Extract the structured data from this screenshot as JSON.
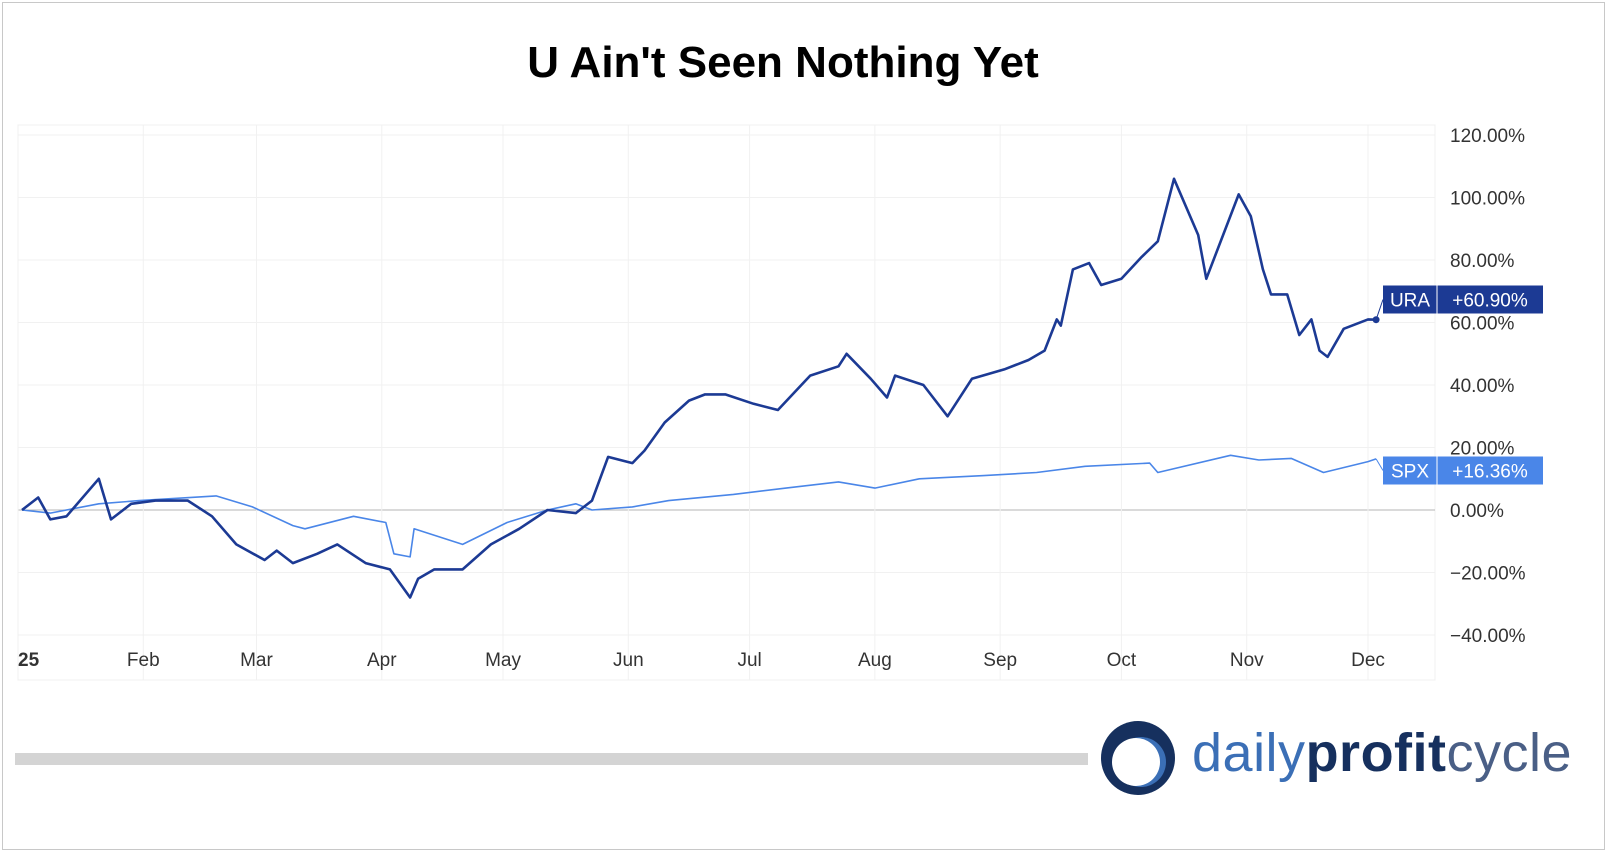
{
  "title": "U Ain't Seen Nothing Yet",
  "chart_data": {
    "type": "line",
    "title": "U Ain't Seen Nothing Yet",
    "xlabel": "",
    "ylabel": "",
    "x_tick_labels": [
      "25",
      "Feb",
      "Mar",
      "Apr",
      "May",
      "Jun",
      "Jul",
      "Aug",
      "Sep",
      "Oct",
      "Nov",
      "Dec"
    ],
    "y_tick_labels": [
      "120.00%",
      "100.00%",
      "80.00%",
      "60.00%",
      "40.00%",
      "20.00%",
      "0.00%",
      "−20.00%",
      "−40.00%"
    ],
    "ylim": [
      -40,
      120
    ],
    "grid": true,
    "series": [
      {
        "name": "URA",
        "color": "#1c3a94",
        "last_label": "+60.90%",
        "points": [
          [
            "2025-01-02",
            0
          ],
          [
            "2025-01-06",
            4
          ],
          [
            "2025-01-09",
            -3
          ],
          [
            "2025-01-13",
            -2
          ],
          [
            "2025-01-21",
            10
          ],
          [
            "2025-01-24",
            -3
          ],
          [
            "2025-01-29",
            2
          ],
          [
            "2025-02-04",
            3
          ],
          [
            "2025-02-12",
            3
          ],
          [
            "2025-02-18",
            -2
          ],
          [
            "2025-02-24",
            -11
          ],
          [
            "2025-03-03",
            -16
          ],
          [
            "2025-03-06",
            -13
          ],
          [
            "2025-03-10",
            -17
          ],
          [
            "2025-03-16",
            -14
          ],
          [
            "2025-03-21",
            -11
          ],
          [
            "2025-03-28",
            -17
          ],
          [
            "2025-04-03",
            -19
          ],
          [
            "2025-04-08",
            -28
          ],
          [
            "2025-04-10",
            -22
          ],
          [
            "2025-04-14",
            -19
          ],
          [
            "2025-04-21",
            -19
          ],
          [
            "2025-04-28",
            -11
          ],
          [
            "2025-05-05",
            -6
          ],
          [
            "2025-05-12",
            0
          ],
          [
            "2025-05-19",
            -1
          ],
          [
            "2025-05-23",
            3
          ],
          [
            "2025-05-27",
            17
          ],
          [
            "2025-06-02",
            15
          ],
          [
            "2025-06-05",
            19
          ],
          [
            "2025-06-10",
            28
          ],
          [
            "2025-06-16",
            35
          ],
          [
            "2025-06-20",
            37
          ],
          [
            "2025-06-25",
            37
          ],
          [
            "2025-07-02",
            34
          ],
          [
            "2025-07-08",
            32
          ],
          [
            "2025-07-16",
            43
          ],
          [
            "2025-07-23",
            46
          ],
          [
            "2025-07-25",
            50
          ],
          [
            "2025-07-31",
            42
          ],
          [
            "2025-08-04",
            36
          ],
          [
            "2025-08-06",
            43
          ],
          [
            "2025-08-13",
            40
          ],
          [
            "2025-08-19",
            30
          ],
          [
            "2025-08-25",
            42
          ],
          [
            "2025-09-02",
            45
          ],
          [
            "2025-09-08",
            48
          ],
          [
            "2025-09-12",
            51
          ],
          [
            "2025-09-15",
            61
          ],
          [
            "2025-09-16",
            59
          ],
          [
            "2025-09-19",
            77
          ],
          [
            "2025-09-23",
            79
          ],
          [
            "2025-09-26",
            72
          ],
          [
            "2025-10-01",
            74
          ],
          [
            "2025-10-06",
            81
          ],
          [
            "2025-10-10",
            86
          ],
          [
            "2025-10-14",
            106
          ],
          [
            "2025-10-20",
            88
          ],
          [
            "2025-10-22",
            74
          ],
          [
            "2025-10-30",
            101
          ],
          [
            "2025-11-02",
            94
          ],
          [
            "2025-11-05",
            77
          ],
          [
            "2025-11-07",
            69
          ],
          [
            "2025-11-11",
            69
          ],
          [
            "2025-11-14",
            56
          ],
          [
            "2025-11-17",
            61
          ],
          [
            "2025-11-19",
            51
          ],
          [
            "2025-11-21",
            49
          ],
          [
            "2025-11-25",
            58
          ],
          [
            "2025-12-01",
            61
          ],
          [
            "2025-12-03",
            60.9
          ]
        ]
      },
      {
        "name": "SPX",
        "color": "#4a86e8",
        "last_label": "+16.36%",
        "points": [
          [
            "2025-01-02",
            0
          ],
          [
            "2025-01-09",
            -1
          ],
          [
            "2025-01-21",
            2
          ],
          [
            "2025-01-31",
            3
          ],
          [
            "2025-02-19",
            4.5
          ],
          [
            "2025-02-28",
            1
          ],
          [
            "2025-03-10",
            -5
          ],
          [
            "2025-03-13",
            -6
          ],
          [
            "2025-03-25",
            -2
          ],
          [
            "2025-04-02",
            -4
          ],
          [
            "2025-04-04",
            -14
          ],
          [
            "2025-04-08",
            -15
          ],
          [
            "2025-04-09",
            -6
          ],
          [
            "2025-04-21",
            -11
          ],
          [
            "2025-05-02",
            -4
          ],
          [
            "2025-05-12",
            0
          ],
          [
            "2025-05-19",
            2
          ],
          [
            "2025-05-23",
            0
          ],
          [
            "2025-06-02",
            1
          ],
          [
            "2025-06-11",
            3
          ],
          [
            "2025-06-27",
            5
          ],
          [
            "2025-07-10",
            7
          ],
          [
            "2025-07-23",
            9
          ],
          [
            "2025-08-01",
            7
          ],
          [
            "2025-08-12",
            10
          ],
          [
            "2025-08-28",
            11
          ],
          [
            "2025-09-10",
            12
          ],
          [
            "2025-09-22",
            14
          ],
          [
            "2025-10-08",
            15
          ],
          [
            "2025-10-10",
            12
          ],
          [
            "2025-10-28",
            17.5
          ],
          [
            "2025-11-04",
            16
          ],
          [
            "2025-11-12",
            16.5
          ],
          [
            "2025-11-20",
            12
          ],
          [
            "2025-12-01",
            15.5
          ],
          [
            "2025-12-03",
            16.36
          ]
        ]
      }
    ]
  },
  "logo": {
    "part1": "daily",
    "part2": "profit",
    "part3": "cycle"
  }
}
